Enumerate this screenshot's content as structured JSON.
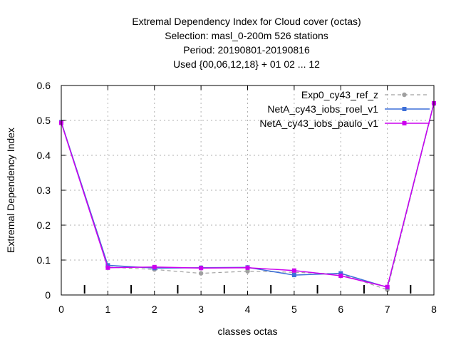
{
  "chart_data": {
    "type": "line",
    "title_lines": [
      "Extremal Dependency Index  for Cloud cover (octas)",
      "Selection: masl_0-200m    526 stations",
      "Period: 20190801-20190816",
      "Used {00,06,12,18} + 01 02 ... 12"
    ],
    "xlabel": "classes octas",
    "ylabel": "Extremal Dependency Index",
    "xlim": [
      0,
      8
    ],
    "ylim": [
      0,
      0.6
    ],
    "x_ticks": [
      "0",
      "1",
      "2",
      "3",
      "4",
      "5",
      "6",
      "7",
      "8"
    ],
    "y_ticks": [
      "0",
      "0.1",
      "0.2",
      "0.3",
      "0.4",
      "0.5",
      "0.6"
    ],
    "grid": true,
    "legend_position": "top-right",
    "class_boundary_marks": [
      0.5,
      1.5,
      2.5,
      3.5,
      4.5,
      5.5,
      6.5,
      7.5
    ],
    "x": [
      0,
      1,
      2,
      3,
      4,
      5,
      6,
      7,
      8
    ],
    "series": [
      {
        "name": "Exp0_cy43_ref_z",
        "color": "#a0a0a0",
        "dashed": true,
        "values": [
          0.495,
          0.08,
          0.073,
          0.062,
          0.068,
          0.065,
          0.06,
          0.015,
          0.548
        ]
      },
      {
        "name": "NetA_cy43_iobs_roel_v1",
        "color": "#3d6fd8",
        "dashed": false,
        "values": [
          0.495,
          0.085,
          0.077,
          0.078,
          0.079,
          0.057,
          0.062,
          0.022,
          0.549
        ]
      },
      {
        "name": "NetA_cy43_iobs_paulo_v1",
        "color": "#cc00ee",
        "dashed": false,
        "values": [
          0.493,
          0.078,
          0.08,
          0.077,
          0.078,
          0.07,
          0.055,
          0.023,
          0.549
        ]
      }
    ]
  }
}
